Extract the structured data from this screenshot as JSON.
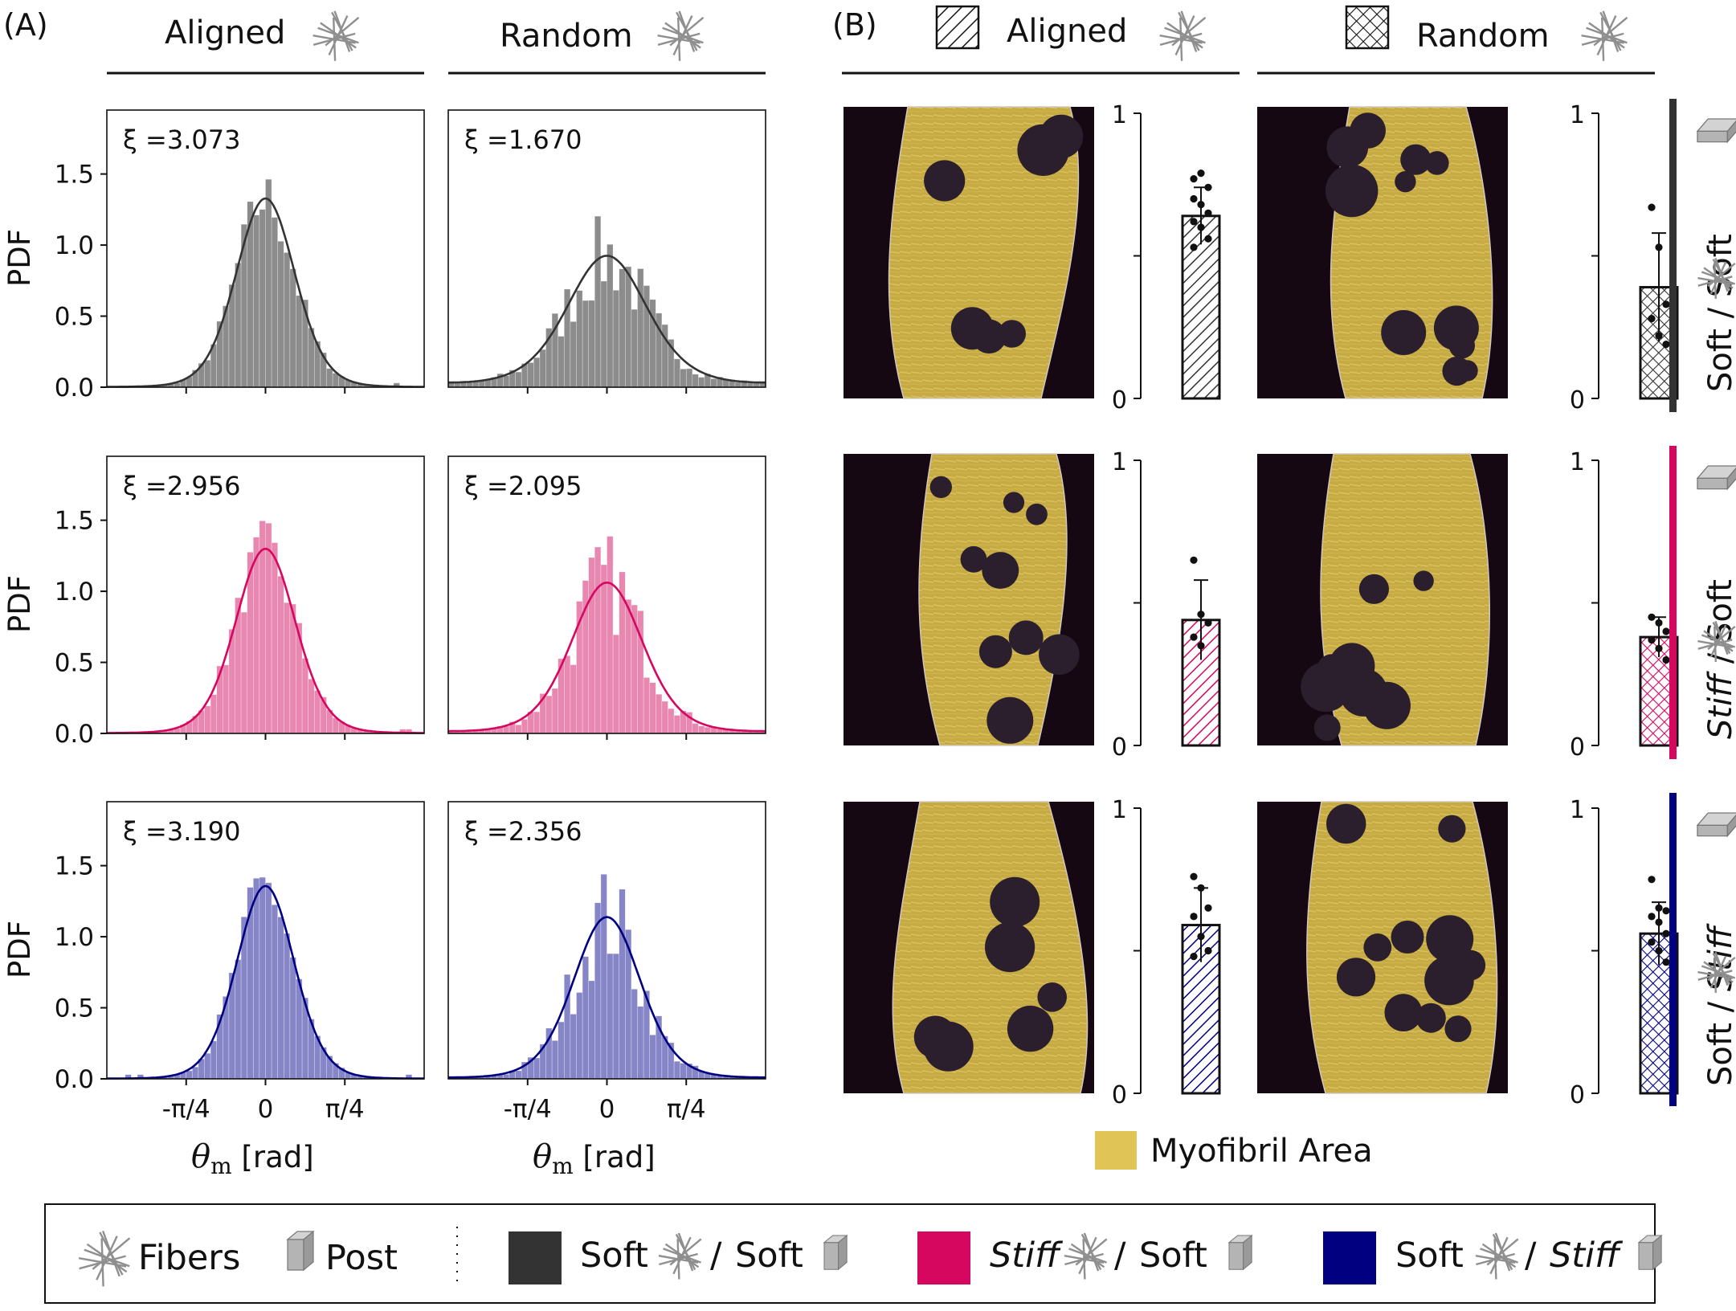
{
  "panel_a_label": "(A)",
  "panel_b_label": "(B)",
  "columns": {
    "aligned": "Aligned",
    "random": "Random"
  },
  "pdf_axis": {
    "ylabel": "PDF",
    "xlabel_symbol": "θ",
    "xlabel_sub": "m",
    "xlabel_unit": "[rad]",
    "xticks": [
      "-π/4",
      "0",
      "π/4"
    ],
    "yticks": [
      "0.0",
      "0.5",
      "1.0",
      "1.5"
    ],
    "xlim": [
      -1.571,
      1.571
    ],
    "ylim": [
      0,
      1.95
    ]
  },
  "bar_axis": {
    "yticks": [
      "0",
      "1"
    ],
    "ylim": [
      0,
      1
    ]
  },
  "row_labels": [
    {
      "a": "Soft",
      "b": "Soft",
      "a_italic": false,
      "b_italic": false
    },
    {
      "a": "Stiff",
      "b": "Soft",
      "a_italic": true,
      "b_italic": false
    },
    {
      "a": "Soft",
      "b": "Stiff",
      "a_italic": false,
      "b_italic": true
    }
  ],
  "slash": "/",
  "myofibril_legend": "Myofibril Area",
  "legend": {
    "fibers": "Fibers",
    "post": "Post",
    "soft": "Soft",
    "stiff": "Stiff",
    "slash": "/"
  },
  "colors": {
    "soft_soft": "#333333",
    "stiff_soft": "#d6075f",
    "soft_stiff": "#000080",
    "hist_soft_soft": "#8c8c8c",
    "hist_stiff_soft": "#e887b0",
    "hist_soft_stiff": "#8585c7",
    "myofibril": "#e0c455",
    "image_bg": "#160812"
  },
  "chart_data": [
    {
      "type": "bar",
      "title": "Aligned",
      "group": "Soft / Soft",
      "kind": "pdf_histogram",
      "xi": "ξ =3.073",
      "kappa": 3.073
    },
    {
      "type": "bar",
      "title": "Random",
      "group": "Soft / Soft",
      "kind": "pdf_histogram",
      "xi": "ξ =1.670",
      "kappa": 1.67
    },
    {
      "type": "bar",
      "title": "Aligned",
      "group": "Stiff / Soft",
      "kind": "pdf_histogram",
      "xi": "ξ =2.956",
      "kappa": 2.956
    },
    {
      "type": "bar",
      "title": "Random",
      "group": "Stiff / Soft",
      "kind": "pdf_histogram",
      "xi": "ξ =2.095",
      "kappa": 2.095
    },
    {
      "type": "bar",
      "title": "Aligned",
      "group": "Soft / Stiff",
      "kind": "pdf_histogram",
      "xi": "ξ =3.190",
      "kappa": 3.19
    },
    {
      "type": "bar",
      "title": "Random",
      "group": "Soft / Stiff",
      "kind": "pdf_histogram",
      "xi": "ξ =2.356",
      "kappa": 2.356
    },
    {
      "type": "bar",
      "kind": "myofibril_fraction",
      "title": "Aligned",
      "group": "Soft / Soft",
      "mean": 0.64,
      "err": 0.1,
      "points": [
        0.77,
        0.79,
        0.74,
        0.7,
        0.68,
        0.65,
        0.62,
        0.6,
        0.56,
        0.53
      ]
    },
    {
      "type": "bar",
      "kind": "myofibril_fraction",
      "title": "Random",
      "group": "Soft / Soft",
      "mean": 0.39,
      "err": 0.19,
      "points": [
        0.67,
        0.53,
        0.33,
        0.28,
        0.22,
        0.19
      ]
    },
    {
      "type": "bar",
      "kind": "myofibril_fraction",
      "title": "Aligned",
      "group": "Stiff / Soft",
      "mean": 0.44,
      "err": 0.14,
      "points": [
        0.65,
        0.46,
        0.43,
        0.38,
        0.35
      ]
    },
    {
      "type": "bar",
      "kind": "myofibril_fraction",
      "title": "Random",
      "group": "Stiff / Soft",
      "mean": 0.38,
      "err": 0.07,
      "points": [
        0.45,
        0.43,
        0.4,
        0.37,
        0.34,
        0.3
      ]
    },
    {
      "type": "bar",
      "kind": "myofibril_fraction",
      "title": "Aligned",
      "group": "Soft / Stiff",
      "mean": 0.59,
      "err": 0.13,
      "points": [
        0.76,
        0.72,
        0.65,
        0.62,
        0.55,
        0.5,
        0.48
      ]
    },
    {
      "type": "bar",
      "kind": "myofibril_fraction",
      "title": "Random",
      "group": "Soft / Stiff",
      "mean": 0.56,
      "err": 0.11,
      "points": [
        0.75,
        0.65,
        0.64,
        0.62,
        0.6,
        0.56,
        0.53,
        0.5,
        0.46
      ]
    }
  ]
}
